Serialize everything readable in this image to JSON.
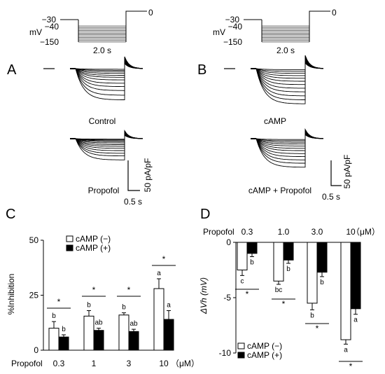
{
  "panels": {
    "a": "A",
    "b": "B",
    "c": "C",
    "d": "D"
  },
  "protocol": {
    "v_hold": "−30",
    "v_top": "−40",
    "v_bottom": "−150",
    "v_step": "0",
    "unit": "mV",
    "duration": "2.0 s"
  },
  "traces": {
    "control": "Control",
    "propofol": "Propofol",
    "camp": "cAMP",
    "camp_propofol": "cAMP + Propofol",
    "scale_y": "50 pA/pF",
    "scale_x": "0.5 s",
    "step_levels_mv": [
      -40,
      -50,
      -60,
      -70,
      -80,
      -90,
      -100,
      -110,
      -120,
      -130,
      -140,
      -150
    ],
    "peak_currents": {
      "control": [
        0.9,
        2.5,
        4.5,
        7,
        10,
        13,
        17,
        22,
        27,
        33,
        40,
        47
      ],
      "propofol": [
        0.7,
        1.8,
        3,
        4.5,
        6.5,
        9,
        11.5,
        14.5,
        18,
        22,
        26,
        32
      ],
      "camp": [
        1.5,
        4,
        7,
        10.5,
        14.5,
        19,
        24,
        29.5,
        35,
        41,
        47,
        53
      ],
      "camp_propofol": [
        1.3,
        3.2,
        5.5,
        8,
        11,
        14.5,
        18,
        22.5,
        27,
        32,
        37,
        43
      ]
    }
  },
  "chart_data": [
    {
      "type": "bar",
      "ylabel": "%Inhibition",
      "xlabel_prefix": "Propofol",
      "unit": "（μM）",
      "categories": [
        "0.3",
        "1",
        "3",
        "10"
      ],
      "ylim": [
        0,
        50
      ],
      "yticks": [
        "0",
        "25",
        "50"
      ],
      "legend": "top-left",
      "series": [
        {
          "name": "cAMP (−)",
          "color": "#ffffff",
          "values": [
            10,
            15.5,
            16,
            28
          ],
          "errors": [
            3,
            2.5,
            1,
            4.5
          ],
          "letters": [
            "b",
            "b",
            "b",
            "a"
          ]
        },
        {
          "name": "cAMP (+)",
          "color": "#000000",
          "values": [
            6,
            9,
            8.5,
            14
          ],
          "errors": [
            1,
            1,
            1,
            4
          ],
          "letters": [
            "b",
            "ab",
            "ab",
            "a"
          ]
        }
      ],
      "significance": [
        "*",
        "*",
        "*",
        "*"
      ]
    },
    {
      "type": "bar",
      "ylabel": "ΔVh (mV)",
      "xlabel_prefix": "Propofol",
      "unit": "（μM）",
      "categories": [
        "0.3",
        "1.0",
        "3.0",
        "10"
      ],
      "ylim": [
        -10,
        0
      ],
      "yticks": [
        "0",
        "-5",
        "-10"
      ],
      "legend": "bottom-left",
      "series": [
        {
          "name": "cAMP (−)",
          "color": "#ffffff",
          "values": [
            -2.5,
            -3.5,
            -5.5,
            -8.8
          ],
          "errors": [
            0.5,
            0.3,
            0.6,
            0.4
          ],
          "letters": [
            "c",
            "bc",
            "b",
            "a"
          ]
        },
        {
          "name": "cAMP (+)",
          "color": "#000000",
          "values": [
            -1,
            -1.6,
            -2.7,
            -6
          ],
          "errors": [
            0.3,
            0.3,
            0.4,
            0.5
          ],
          "letters": [
            "b",
            "b",
            "b",
            "a"
          ]
        }
      ],
      "significance": [
        "*",
        "*",
        "*",
        "*"
      ]
    }
  ]
}
